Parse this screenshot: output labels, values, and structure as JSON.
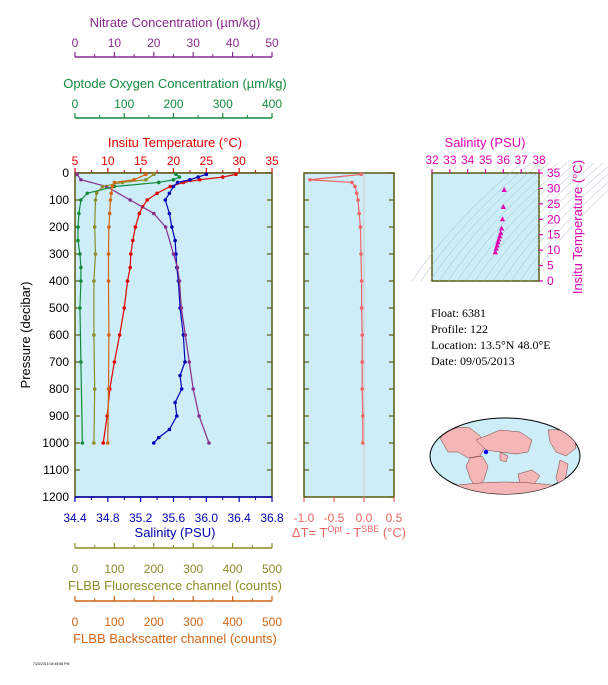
{
  "colors": {
    "nitrate": "#882c8c",
    "oxygen": "#148a3c",
    "temperature": "#e00000",
    "salinity": "#0000b4",
    "fluorescence": "#8c8c28",
    "backscatter": "#d26414",
    "delta": "#f06464",
    "ts": "#e000b0",
    "panel_bg": "#cdeef8",
    "frame": "#5a5a10"
  },
  "info": {
    "float": "Float:  6381",
    "profile": "Profile:  122",
    "location": "Location:  13.5°N  48.0°E",
    "date": "Date:  09/05/2013"
  },
  "footer_tiny": "7/23/2014 04:45:58 PM",
  "chart_data": [
    {
      "type": "line",
      "panel": "profiles",
      "ylabel": "Pressure (decibar)",
      "ylim": [
        0,
        1200
      ],
      "y_ticks": [
        0,
        100,
        200,
        300,
        400,
        500,
        600,
        700,
        800,
        900,
        1000,
        1100,
        1200
      ],
      "y_reversed": true,
      "axes": {
        "nitrate": {
          "label": "Nitrate Concentration (µm/kg)",
          "range": [
            0,
            50
          ],
          "ticks": [
            0,
            10,
            20,
            30,
            40,
            50
          ]
        },
        "oxygen": {
          "label": "Optode Oxygen Concentration (µm/kg)",
          "range": [
            0,
            400
          ],
          "ticks": [
            0,
            100,
            200,
            300,
            400
          ]
        },
        "temperature": {
          "label": "Insitu Temperature (°C)",
          "range": [
            5,
            35
          ],
          "ticks": [
            5,
            10,
            15,
            20,
            25,
            30,
            35
          ]
        },
        "salinity": {
          "label": "Salinity (PSU)",
          "range": [
            34.4,
            36.8
          ],
          "ticks": [
            "34.4",
            "34.8",
            "35.2",
            "35.6",
            "36.0",
            "36.4",
            "36.8"
          ]
        },
        "fluorescence": {
          "label": "FLBB Fluorescence channel (counts)",
          "range": [
            0,
            500
          ],
          "ticks": [
            0,
            100,
            200,
            300,
            400,
            500
          ]
        },
        "backscatter": {
          "label": "FLBB Backscatter channel (counts)",
          "range": [
            0,
            500
          ],
          "ticks": [
            0,
            100,
            200,
            300,
            400,
            500
          ]
        }
      },
      "series": [
        {
          "key": "temperature",
          "pressure": [
            5,
            15,
            25,
            35,
            50,
            75,
            100,
            125,
            150,
            200,
            250,
            300,
            350,
            400,
            500,
            600,
            700,
            800,
            900,
            1000
          ],
          "values": [
            29.5,
            27.5,
            24.0,
            21.5,
            19.5,
            17.5,
            16.0,
            15.3,
            14.8,
            14.2,
            13.8,
            13.5,
            13.4,
            13.0,
            12.5,
            11.8,
            11.0,
            10.3,
            9.9,
            9.3
          ]
        },
        {
          "key": "salinity",
          "pressure": [
            5,
            15,
            25,
            35,
            50,
            75,
            100,
            150,
            200,
            250,
            300,
            350,
            400,
            500,
            600,
            700,
            750,
            800,
            850,
            900,
            950,
            980,
            1000
          ],
          "values": [
            36.0,
            35.9,
            35.8,
            35.65,
            35.6,
            35.55,
            35.5,
            35.55,
            35.58,
            35.62,
            35.63,
            35.64,
            35.66,
            35.68,
            35.72,
            35.74,
            35.68,
            35.7,
            35.62,
            35.64,
            35.55,
            35.42,
            35.36
          ]
        },
        {
          "key": "nitrate",
          "pressure": [
            5,
            25,
            50,
            100,
            150,
            200,
            300,
            350,
            400,
            500,
            600,
            700,
            800,
            900,
            1000
          ],
          "values": [
            0.5,
            1.5,
            8,
            14,
            20,
            23,
            25,
            26,
            26.5,
            27,
            28,
            29,
            30,
            31.5,
            34
          ]
        },
        {
          "key": "oxygen",
          "pressure": [
            5,
            15,
            25,
            35,
            50,
            75,
            100,
            150,
            200,
            250,
            300,
            350,
            400,
            500,
            700,
            1000
          ],
          "values": [
            205,
            212,
            200,
            170,
            80,
            25,
            12,
            8,
            6,
            6,
            10,
            12,
            12,
            10,
            12,
            15
          ]
        },
        {
          "key": "fluorescence",
          "pressure": [
            5,
            25,
            35,
            50,
            75,
            100,
            200,
            300,
            400,
            600,
            800,
            1000
          ],
          "values": [
            200,
            180,
            120,
            70,
            55,
            52,
            50,
            52,
            48,
            48,
            50,
            48
          ]
        },
        {
          "key": "backscatter",
          "pressure": [
            5,
            25,
            35,
            50,
            75,
            100,
            150,
            200,
            300,
            400,
            600,
            800,
            1000
          ],
          "values": [
            180,
            150,
            100,
            95,
            92,
            90,
            88,
            86,
            85,
            85,
            86,
            85,
            83
          ]
        }
      ]
    },
    {
      "type": "line",
      "panel": "delta",
      "xlabel": "ΔT= T",
      "xlabel_sup1": "Opt",
      "xlabel_mid": " - T",
      "xlabel_sup2": "SBE",
      "xlabel_end": " (°C)",
      "xlim": [
        -1.0,
        0.5
      ],
      "x_ticks": [
        "-1.0",
        "-0.5",
        "0.0",
        "0.5"
      ],
      "ylim": [
        0,
        1200
      ],
      "pressure": [
        5,
        25,
        35,
        50,
        75,
        100,
        150,
        200,
        300,
        400,
        500,
        600,
        700,
        800,
        900,
        1000
      ],
      "values": [
        -0.05,
        -0.9,
        -0.2,
        -0.15,
        -0.12,
        -0.1,
        -0.08,
        -0.06,
        -0.05,
        -0.04,
        -0.04,
        -0.03,
        -0.03,
        -0.03,
        -0.02,
        -0.02
      ]
    },
    {
      "type": "scatter",
      "panel": "ts",
      "title": "Salinity (PSU)",
      "ylabel": "Insitu Temperature (°C)",
      "xlim": [
        32,
        38
      ],
      "ylim": [
        0,
        35
      ],
      "x_ticks": [
        32,
        33,
        34,
        35,
        36,
        37,
        38
      ],
      "y_ticks": [
        0,
        5,
        10,
        15,
        20,
        25,
        30,
        35
      ],
      "x": [
        35.55,
        35.6,
        35.65,
        35.7,
        35.75,
        35.8,
        35.85,
        35.9,
        35.95,
        36.0,
        36.05
      ],
      "y": [
        9.3,
        10.5,
        11.5,
        12.5,
        13.5,
        14.5,
        15.5,
        17,
        20,
        24,
        29.5
      ]
    }
  ]
}
